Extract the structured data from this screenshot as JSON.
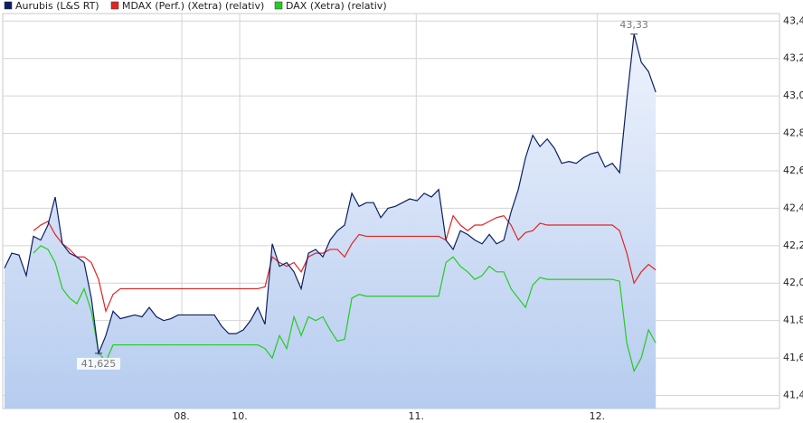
{
  "chart_data": {
    "type": "line",
    "legend": "top-left",
    "grid": true,
    "area_series": 0,
    "annotations": {
      "max_label": "43,33",
      "min_label": "41,625"
    },
    "x": [
      0,
      1,
      2,
      3,
      4,
      5,
      6,
      7,
      8,
      9,
      10,
      11,
      12,
      13,
      14,
      15,
      16,
      17,
      18,
      19,
      20,
      21,
      22,
      23,
      24,
      25,
      26,
      27,
      28,
      29,
      30,
      31,
      32,
      33,
      34,
      35,
      36,
      37,
      38,
      39,
      40,
      41,
      42,
      43,
      44,
      45,
      46,
      47,
      48,
      49,
      50,
      51,
      52,
      53,
      54,
      55,
      56,
      57,
      58,
      59,
      60,
      61,
      62,
      63,
      64,
      65,
      66,
      67,
      68,
      69,
      70,
      71,
      72,
      73,
      74,
      75,
      76,
      77,
      78,
      79,
      80,
      81,
      82,
      83,
      84,
      85,
      86,
      87,
      88,
      89,
      90
    ],
    "xlim": [
      -0.25,
      107.1
    ],
    "xticks": [
      {
        "value": 24.5,
        "label": "08."
      },
      {
        "value": 32.5,
        "label": "10."
      },
      {
        "value": 56.9,
        "label": "11."
      },
      {
        "value": 81.9,
        "label": "12."
      }
    ],
    "ylim": [
      41.33,
      43.44
    ],
    "yticks": [
      {
        "value": 41.4,
        "label": "41,4"
      },
      {
        "value": 41.6,
        "label": "41,6"
      },
      {
        "value": 41.8,
        "label": "41,8"
      },
      {
        "value": 42.0,
        "label": "42,0"
      },
      {
        "value": 42.2,
        "label": "42,2"
      },
      {
        "value": 42.4,
        "label": "42,4"
      },
      {
        "value": 42.6,
        "label": "42,6"
      },
      {
        "value": 42.8,
        "label": "42,8"
      },
      {
        "value": 43.0,
        "label": "43,0"
      },
      {
        "value": 43.2,
        "label": "43,2"
      },
      {
        "value": 43.4,
        "label": "43,4"
      }
    ],
    "series": [
      {
        "name": "Aurubis (L&S RT)",
        "color": "#0b1f63",
        "values": [
          42.08,
          42.16,
          42.15,
          42.04,
          42.25,
          42.23,
          42.31,
          42.46,
          42.21,
          42.16,
          42.14,
          42.11,
          41.92,
          41.625,
          41.72,
          41.85,
          41.81,
          41.82,
          41.83,
          41.82,
          41.87,
          41.82,
          41.8,
          41.81,
          41.83,
          41.83,
          41.83,
          41.83,
          41.83,
          41.83,
          41.77,
          41.73,
          41.73,
          41.75,
          41.8,
          41.87,
          41.78,
          42.21,
          42.09,
          42.11,
          42.06,
          41.97,
          42.16,
          42.18,
          42.14,
          42.23,
          42.28,
          42.31,
          42.48,
          42.41,
          42.43,
          42.43,
          42.35,
          42.4,
          42.41,
          42.43,
          42.45,
          42.44,
          42.48,
          42.46,
          42.5,
          42.23,
          42.18,
          42.28,
          42.26,
          42.23,
          42.21,
          42.26,
          42.21,
          42.23,
          42.38,
          42.5,
          42.67,
          42.79,
          42.73,
          42.77,
          42.72,
          42.64,
          42.65,
          42.64,
          42.67,
          42.69,
          42.7,
          42.62,
          42.64,
          42.59,
          42.98,
          43.33,
          43.18,
          43.13,
          43.02
        ]
      },
      {
        "name": "MDAX (Perf.) (Xetra) (relativ)",
        "color": "#e02424",
        "values": [
          null,
          null,
          null,
          null,
          42.28,
          42.31,
          42.33,
          42.26,
          42.21,
          42.18,
          42.14,
          42.14,
          42.11,
          42.02,
          41.85,
          41.94,
          41.97,
          41.97,
          41.97,
          41.97,
          41.97,
          41.97,
          41.97,
          41.97,
          41.97,
          41.97,
          41.97,
          41.97,
          41.97,
          41.97,
          41.97,
          41.97,
          41.97,
          41.97,
          41.97,
          41.97,
          41.98,
          42.14,
          42.11,
          42.09,
          42.11,
          42.06,
          42.14,
          42.16,
          42.16,
          42.18,
          42.18,
          42.14,
          42.21,
          42.26,
          42.25,
          42.25,
          42.25,
          42.25,
          42.25,
          42.25,
          42.25,
          42.25,
          42.25,
          42.25,
          42.25,
          42.23,
          42.36,
          42.31,
          42.28,
          42.31,
          42.31,
          42.33,
          42.35,
          42.36,
          42.31,
          42.23,
          42.27,
          42.28,
          42.32,
          42.31,
          42.31,
          42.31,
          42.31,
          42.31,
          42.31,
          42.31,
          42.31,
          42.31,
          42.31,
          42.28,
          42.16,
          42.0,
          42.06,
          42.1,
          42.07
        ]
      },
      {
        "name": "DAX (Xetra) (relativ)",
        "color": "#22cc22",
        "values": [
          null,
          null,
          null,
          null,
          42.16,
          42.2,
          42.18,
          42.11,
          41.97,
          41.92,
          41.89,
          41.97,
          41.85,
          41.63,
          41.58,
          41.67,
          41.67,
          41.67,
          41.67,
          41.67,
          41.67,
          41.67,
          41.67,
          41.67,
          41.67,
          41.67,
          41.67,
          41.67,
          41.67,
          41.67,
          41.67,
          41.67,
          41.67,
          41.67,
          41.67,
          41.67,
          41.65,
          41.6,
          41.72,
          41.65,
          41.82,
          41.72,
          41.82,
          41.8,
          41.82,
          41.75,
          41.69,
          41.7,
          41.92,
          41.94,
          41.93,
          41.93,
          41.93,
          41.93,
          41.93,
          41.93,
          41.93,
          41.93,
          41.93,
          41.93,
          41.93,
          42.11,
          42.14,
          42.09,
          42.06,
          42.02,
          42.04,
          42.09,
          42.06,
          42.06,
          41.97,
          41.92,
          41.87,
          41.99,
          42.03,
          42.02,
          42.02,
          42.02,
          42.02,
          42.02,
          42.02,
          42.02,
          42.02,
          42.02,
          42.02,
          42.01,
          41.68,
          41.53,
          41.6,
          41.75,
          41.68
        ]
      }
    ]
  }
}
